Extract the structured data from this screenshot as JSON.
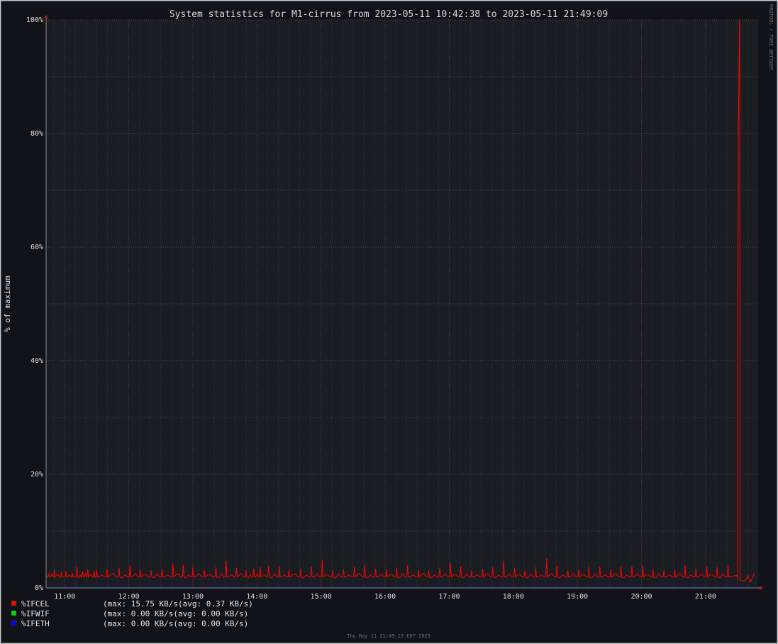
{
  "chart_data": {
    "type": "line",
    "title": "System statistics for M1-cirrus from 2023-05-11 10:42:38 to 2023-05-11 21:49:09",
    "ylabel": "% of maximum",
    "xlabel": "",
    "ylim": [
      0,
      100
    ],
    "x_range_hours": [
      10.71,
      21.82
    ],
    "yticks": [
      "0%",
      "20%",
      "40%",
      "60%",
      "80%",
      "100%"
    ],
    "xticks": [
      "11:00",
      "12:00",
      "13:00",
      "14:00",
      "15:00",
      "16:00",
      "17:00",
      "18:00",
      "19:00",
      "20:00",
      "21:00"
    ],
    "grid": true,
    "series": [
      {
        "name": "%IFCEL",
        "color": "#ff0000",
        "baseline": 1.8,
        "peaks": [
          [
            10.75,
            2.5
          ],
          [
            10.84,
            3.2
          ],
          [
            10.95,
            2.8
          ],
          [
            11.02,
            3.0
          ],
          [
            11.12,
            2.6
          ],
          [
            11.19,
            3.7
          ],
          [
            11.28,
            2.9
          ],
          [
            11.36,
            3.3
          ],
          [
            11.46,
            3.0
          ],
          [
            11.5,
            3.2
          ],
          [
            11.66,
            3.4
          ],
          [
            11.85,
            3.5
          ],
          [
            12.02,
            4.0
          ],
          [
            12.18,
            3.3
          ],
          [
            12.35,
            3.1
          ],
          [
            12.52,
            3.4
          ],
          [
            12.69,
            4.3
          ],
          [
            12.85,
            4.1
          ],
          [
            13.0,
            3.6
          ],
          [
            13.18,
            3.2
          ],
          [
            13.36,
            3.7
          ],
          [
            13.52,
            4.8
          ],
          [
            13.68,
            3.5
          ],
          [
            13.83,
            3.1
          ],
          [
            13.95,
            3.4
          ],
          [
            14.05,
            3.7
          ],
          [
            14.18,
            3.9
          ],
          [
            14.35,
            3.9
          ],
          [
            14.5,
            3.2
          ],
          [
            14.68,
            3.4
          ],
          [
            14.85,
            3.8
          ],
          [
            15.02,
            4.9
          ],
          [
            15.18,
            3.1
          ],
          [
            15.35,
            3.3
          ],
          [
            15.52,
            3.7
          ],
          [
            15.68,
            4.1
          ],
          [
            15.85,
            3.4
          ],
          [
            16.02,
            3.3
          ],
          [
            16.18,
            3.5
          ],
          [
            16.35,
            4.0
          ],
          [
            16.52,
            3.2
          ],
          [
            16.68,
            3.0
          ],
          [
            16.85,
            3.5
          ],
          [
            17.02,
            4.4
          ],
          [
            17.18,
            3.8
          ],
          [
            17.35,
            3.1
          ],
          [
            17.52,
            3.3
          ],
          [
            17.68,
            3.7
          ],
          [
            17.85,
            4.8
          ],
          [
            18.02,
            3.5
          ],
          [
            18.18,
            3.0
          ],
          [
            18.35,
            3.6
          ],
          [
            18.52,
            5.2
          ],
          [
            18.68,
            3.9
          ],
          [
            18.85,
            3.1
          ],
          [
            19.02,
            3.3
          ],
          [
            19.18,
            3.7
          ],
          [
            19.35,
            3.7
          ],
          [
            19.52,
            3.2
          ],
          [
            19.68,
            3.8
          ],
          [
            19.85,
            3.8
          ],
          [
            20.02,
            4.0
          ],
          [
            20.18,
            3.3
          ],
          [
            20.35,
            3.1
          ],
          [
            20.52,
            3.2
          ],
          [
            20.68,
            4.0
          ],
          [
            20.85,
            3.4
          ],
          [
            21.02,
            3.7
          ],
          [
            21.18,
            3.6
          ],
          [
            21.35,
            4.0
          ]
        ],
        "spike": {
          "start": 21.5,
          "up_to_80": 21.51,
          "to_100": 21.53,
          "end": 21.54
        },
        "after_spike": [
          [
            21.56,
            1.2
          ],
          [
            21.62,
            1.3
          ],
          [
            21.66,
            2.2
          ],
          [
            21.7,
            1.0
          ],
          [
            21.76,
            2.6
          ]
        ]
      },
      {
        "name": "%IFWIF",
        "color": "#00e000"
      },
      {
        "name": "%IFETH",
        "color": "#0000ff"
      }
    ]
  },
  "legend": [
    {
      "label": "%IFCEL",
      "stats": "(max: 15.75 KB/s(avg: 0.37 KB/s)",
      "color": "#ff0000"
    },
    {
      "label": "%IFWIF",
      "stats": "(max: 0.00 KB/s(avg: 0.00 KB/s)",
      "color": "#00e000"
    },
    {
      "label": "%IFETH",
      "stats": "(max: 0.00 KB/s(avg: 0.00 KB/s)",
      "color": "#0000ff"
    }
  ],
  "watermark": "RRDTOOL / TOBI OETIKER",
  "footer": "Thu May 11 21:49:19 EDT 2023"
}
